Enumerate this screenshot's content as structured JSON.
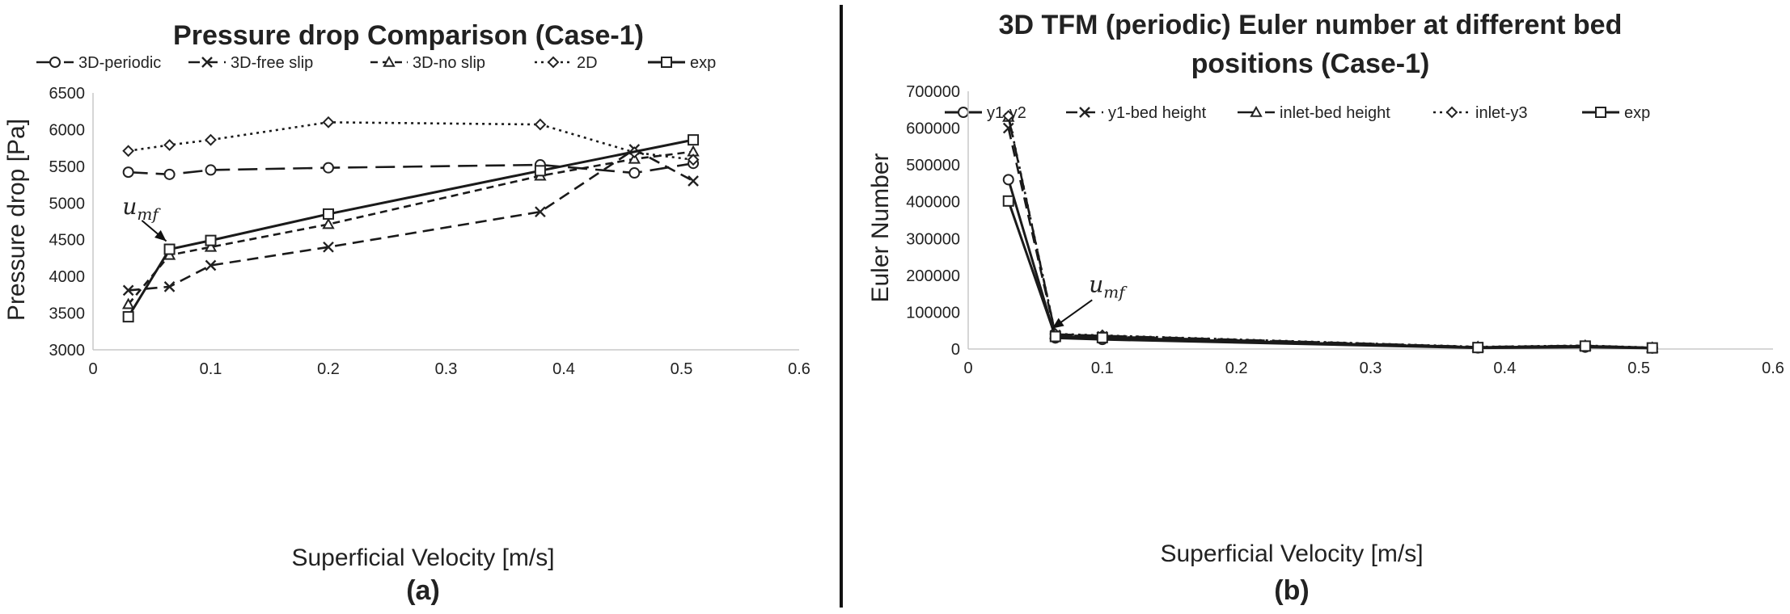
{
  "chart_data": [
    {
      "type": "line",
      "title": "Pressure drop Comparison (Case-1)",
      "xlabel": "Superficial Velocity [m/s]",
      "ylabel": "Pressure drop [Pa]",
      "panel_label": "(a)",
      "xlim": [
        0,
        0.6
      ],
      "ylim": [
        3000,
        6500
      ],
      "xticks": [
        0,
        0.1,
        0.2,
        0.3,
        0.4,
        0.5,
        0.6
      ],
      "yticks": [
        3000,
        3500,
        4000,
        4500,
        5000,
        5500,
        6000,
        6500
      ],
      "legend_position": "top",
      "grid": false,
      "annotation": {
        "text": "u",
        "subscript": "mf",
        "points_to_x": 0.065,
        "points_to_y": 4370,
        "label_x": 0.025,
        "label_y": 4850
      },
      "series": [
        {
          "name": "3D-periodic",
          "marker": "circle",
          "dash": "long-dash",
          "x": [
            0.03,
            0.065,
            0.1,
            0.2,
            0.38,
            0.46,
            0.51
          ],
          "y": [
            5420,
            5390,
            5450,
            5480,
            5520,
            5410,
            5540
          ]
        },
        {
          "name": "3D-free slip",
          "marker": "x",
          "dash": "dash",
          "x": [
            0.03,
            0.065,
            0.1,
            0.2,
            0.38,
            0.46,
            0.51
          ],
          "y": [
            3810,
            3860,
            4150,
            4400,
            4880,
            5730,
            5300
          ]
        },
        {
          "name": "3D-no slip",
          "marker": "triangle",
          "dash": "short-dash",
          "x": [
            0.03,
            0.065,
            0.1,
            0.2,
            0.38,
            0.46,
            0.51
          ],
          "y": [
            3620,
            4290,
            4400,
            4710,
            5370,
            5600,
            5700
          ]
        },
        {
          "name": "2D",
          "marker": "diamond",
          "dash": "dot",
          "x": [
            0.03,
            0.065,
            0.1,
            0.2,
            0.38,
            0.46,
            0.51
          ],
          "y": [
            5710,
            5790,
            5860,
            6100,
            6070,
            5690,
            5590
          ]
        },
        {
          "name": "exp",
          "marker": "square",
          "dash": "solid",
          "x": [
            0.03,
            0.065,
            0.1,
            0.2,
            0.38,
            0.51
          ],
          "y": [
            3450,
            4370,
            4490,
            4850,
            5440,
            5860
          ]
        }
      ]
    },
    {
      "type": "line",
      "title": "3D TFM (periodic) Euler number at different bed positions (Case-1)",
      "title_lines": [
        "3D TFM (periodic) Euler number at different bed",
        "positions (Case-1)"
      ],
      "xlabel": "Superficial Velocity [m/s]",
      "ylabel": "Euler Number",
      "panel_label": "(b)",
      "xlim": [
        0,
        0.6
      ],
      "ylim": [
        0,
        700000
      ],
      "xticks": [
        0,
        0.1,
        0.2,
        0.3,
        0.4,
        0.5,
        0.6
      ],
      "yticks": [
        0,
        100000,
        200000,
        300000,
        400000,
        500000,
        600000,
        700000
      ],
      "legend_position": "top",
      "grid": false,
      "annotation": {
        "text": "u",
        "subscript": "mf",
        "points_to_x": 0.065,
        "points_to_y": 38000,
        "label_x": 0.09,
        "label_y": 155000
      },
      "series": [
        {
          "name": "y1-y2",
          "marker": "circle",
          "dash": "solid",
          "x": [
            0.03,
            0.065,
            0.1,
            0.38,
            0.46,
            0.51
          ],
          "y": [
            460000,
            30000,
            26000,
            3000,
            5000,
            2500
          ]
        },
        {
          "name": "y1-bed height",
          "marker": "x",
          "dash": "dash",
          "x": [
            0.03,
            0.065,
            0.1,
            0.38,
            0.46,
            0.51
          ],
          "y": [
            600000,
            38000,
            34000,
            5000,
            8000,
            3000
          ]
        },
        {
          "name": "inlet-bed height",
          "marker": "triangle",
          "dash": "long-dash",
          "x": [
            0.03,
            0.065,
            0.1,
            0.38,
            0.46,
            0.51
          ],
          "y": [
            630000,
            40000,
            36000,
            5500,
            9000,
            3500
          ]
        },
        {
          "name": "inlet-y3",
          "marker": "diamond",
          "dash": "dot",
          "x": [
            0.03,
            0.065,
            0.1,
            0.38,
            0.46,
            0.51
          ],
          "y": [
            633000,
            41000,
            37000,
            6000,
            9500,
            4000
          ]
        },
        {
          "name": "exp",
          "marker": "square",
          "dash": "solid",
          "x": [
            0.03,
            0.065,
            0.1,
            0.38,
            0.46,
            0.51
          ],
          "y": [
            402000,
            34000,
            31000,
            4000,
            8000,
            3000
          ]
        }
      ]
    }
  ]
}
